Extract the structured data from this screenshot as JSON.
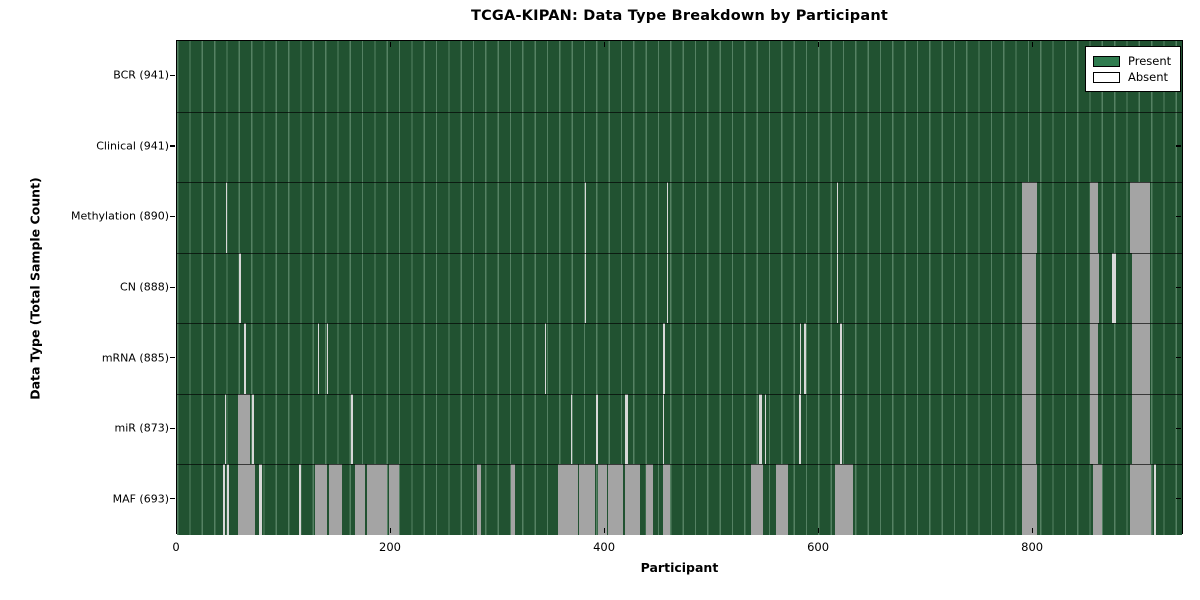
{
  "title": "TCGA-KIPAN: Data Type Breakdown by Participant",
  "legend": {
    "present_label": "Present",
    "absent_label": "Absent"
  },
  "colors": {
    "present": "#2f7c4f",
    "absent": "#ffffff",
    "plot_green": "#215231",
    "stripe_wide": "#a4a4a4",
    "stripe_thin": "#d8d8d8"
  },
  "chart_data": {
    "type": "heatmap",
    "title": "TCGA-KIPAN: Data Type Breakdown by Participant",
    "xlabel": "Participant",
    "ylabel": "Data Type (Total Sample Count)",
    "xlim": [
      0,
      941
    ],
    "x_ticks": [
      0,
      200,
      400,
      600,
      800
    ],
    "n_participants": 941,
    "legend_entries": [
      "Present",
      "Absent"
    ],
    "grid": true,
    "legend_position": "upper right",
    "rows": [
      {
        "label": "BCR (941)",
        "name": "BCR",
        "total": 941,
        "absent_segments": []
      },
      {
        "label": "Clinical (941)",
        "name": "Clinical",
        "total": 941,
        "absent_segments": []
      },
      {
        "label": "Methylation (890)",
        "name": "Methylation",
        "total": 890,
        "absent_segments": [
          [
            46,
            47
          ],
          [
            381,
            382
          ],
          [
            458,
            459
          ],
          [
            617,
            618
          ],
          [
            790,
            804
          ],
          [
            853,
            861
          ],
          [
            891,
            909
          ]
        ]
      },
      {
        "label": "CN (888)",
        "name": "CN",
        "total": 888,
        "absent_segments": [
          [
            58,
            60
          ],
          [
            381,
            382
          ],
          [
            458,
            459
          ],
          [
            617,
            618
          ],
          [
            790,
            803
          ],
          [
            853,
            862
          ],
          [
            874,
            877
          ],
          [
            892,
            909
          ]
        ]
      },
      {
        "label": "mRNA (885)",
        "name": "mRNA",
        "total": 885,
        "absent_segments": [
          [
            63,
            64
          ],
          [
            132,
            133
          ],
          [
            140,
            141
          ],
          [
            344,
            345
          ],
          [
            454,
            456
          ],
          [
            582,
            583
          ],
          [
            586,
            588
          ],
          [
            620,
            621
          ],
          [
            790,
            803
          ],
          [
            853,
            861
          ],
          [
            892,
            909
          ]
        ]
      },
      {
        "label": "miR (873)",
        "name": "miR",
        "total": 873,
        "absent_segments": [
          [
            45,
            46
          ],
          [
            57,
            68
          ],
          [
            70,
            72
          ],
          [
            163,
            164
          ],
          [
            368,
            369
          ],
          [
            392,
            393
          ],
          [
            419,
            421
          ],
          [
            454,
            455
          ],
          [
            544,
            547
          ],
          [
            549,
            550
          ],
          [
            581,
            583
          ],
          [
            620,
            621
          ],
          [
            790,
            803
          ],
          [
            853,
            861
          ],
          [
            892,
            909
          ]
        ]
      },
      {
        "label": "MAF (693)",
        "name": "MAF",
        "total": 693,
        "absent_segments": [
          [
            43,
            45
          ],
          [
            47,
            49
          ],
          [
            57,
            73
          ],
          [
            77,
            79
          ],
          [
            114,
            116
          ],
          [
            129,
            140
          ],
          [
            142,
            154
          ],
          [
            166,
            176
          ],
          [
            178,
            196
          ],
          [
            198,
            207
          ],
          [
            280,
            284
          ],
          [
            312,
            316
          ],
          [
            356,
            375
          ],
          [
            376,
            391
          ],
          [
            393,
            402
          ],
          [
            403,
            417
          ],
          [
            419,
            433
          ],
          [
            438,
            445
          ],
          [
            454,
            461
          ],
          [
            536,
            548
          ],
          [
            560,
            571
          ],
          [
            615,
            632
          ],
          [
            790,
            804
          ],
          [
            856,
            864
          ],
          [
            891,
            910
          ],
          [
            913,
            915
          ]
        ]
      }
    ]
  }
}
